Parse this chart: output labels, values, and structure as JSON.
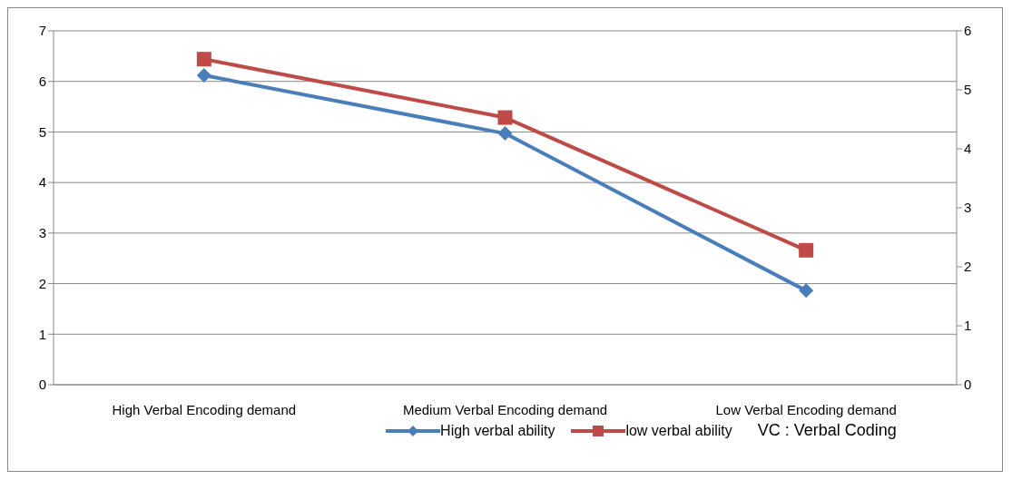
{
  "chart_data": {
    "type": "line",
    "categories": [
      "High Verbal Encoding demand",
      "Medium   Verbal Encoding demand",
      "Low  Verbal Encoding demand"
    ],
    "series": [
      {
        "name": "High verbal ability",
        "color": "#4a7ebb",
        "values": [
          6.12,
          4.97,
          1.86
        ],
        "marker": "diamond"
      },
      {
        "name": "low verbal ability",
        "color": "#be4b48",
        "values": [
          5.52,
          4.53,
          2.28
        ],
        "marker": "square",
        "axis": "y2"
      }
    ],
    "ylim": [
      0,
      7
    ],
    "yticks": [
      0,
      1,
      2,
      3,
      4,
      5,
      6,
      7
    ],
    "y2lim": [
      0,
      6
    ],
    "y2ticks": [
      0,
      1,
      2,
      3,
      4,
      5,
      6
    ],
    "grid": "y",
    "legend": "bottom",
    "annotations": [
      "VC : Verbal Coding"
    ]
  }
}
